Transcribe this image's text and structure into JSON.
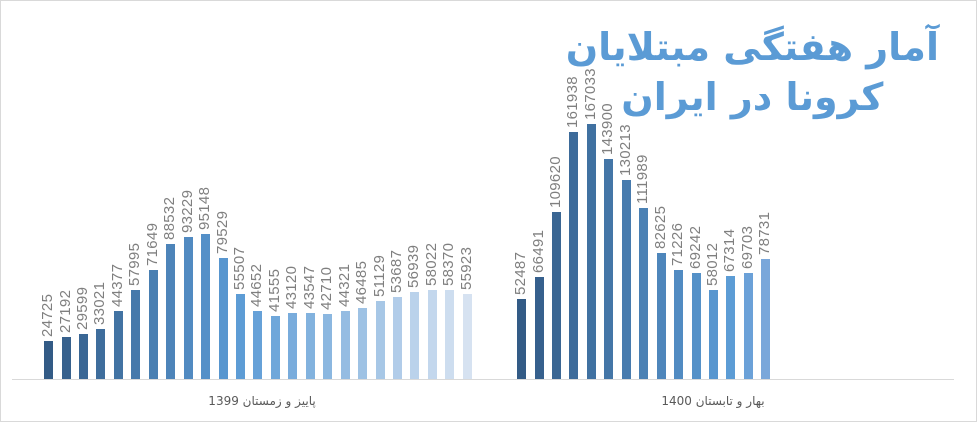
{
  "chart_data": {
    "type": "bar",
    "title": "آمار هفتگی مبتلایان کرونا در ایران",
    "title_lines": [
      "آمار هفتگی مبتلایان",
      "کرونا در ایران"
    ],
    "xlabel": "",
    "ylabel": "",
    "grid": false,
    "legend": "none",
    "ylim": [
      0,
      167033
    ],
    "groups": [
      {
        "name": "پاییز و زمستان 1399",
        "values": [
          24725,
          27192,
          29599,
          33021,
          44377,
          57995,
          71649,
          88532,
          93229,
          95148,
          79529,
          55507,
          44652,
          41555,
          43120,
          43547,
          42710,
          44321,
          46485,
          51129,
          53687,
          56939,
          58022,
          58370,
          55923
        ]
      },
      {
        "name": "بهار و تابستان 1400",
        "values": [
          52487,
          66491,
          109620,
          161938,
          167033,
          143900,
          130213,
          111989,
          82625,
          71226,
          69242,
          58012,
          67314,
          69703,
          78731
        ]
      }
    ]
  },
  "colors": {
    "title": "#5b9bd5",
    "label": "#7f7f7f",
    "axis": "#d9d9d9",
    "gradient_dark": "#335b86",
    "gradient_mid": "#5b9bd5",
    "gradient_light": "#d6e2f1"
  }
}
